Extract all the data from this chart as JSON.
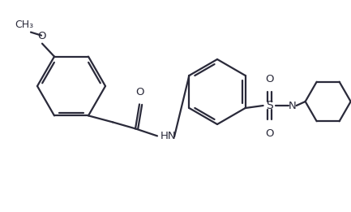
{
  "bg_color": "#ffffff",
  "line_color": "#2a2a3a",
  "bond_lw": 1.6,
  "font_size": 9.5,
  "figsize": [
    4.33,
    2.61
  ],
  "dpi": 100,
  "xlim": [
    0,
    433
  ],
  "ylim": [
    0,
    261
  ]
}
